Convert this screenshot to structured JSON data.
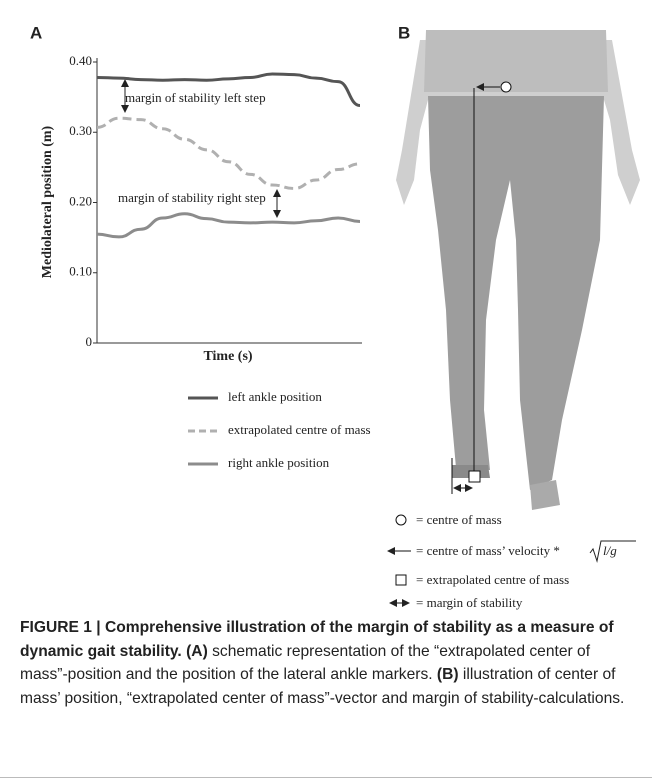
{
  "chart_data": {
    "type": "line",
    "panel_label": "A",
    "ylabel": "Mediolateral position (m)",
    "xlabel": "Time (s)",
    "categories": [
      null,
      null,
      null,
      null,
      null,
      null,
      null,
      null,
      null,
      null,
      null,
      null,
      null
    ],
    "ylim": [
      0,
      0.4
    ],
    "yticks": [
      0,
      {
        "value": 0.1,
        "label": "0.10"
      },
      {
        "value": 0.2,
        "label": "0.20"
      },
      {
        "value": 0.3,
        "label": "0.30"
      },
      {
        "value": 0.4,
        "label": "0.40"
      }
    ],
    "series": [
      {
        "name": "left ankle position",
        "color": "#555555",
        "dashed": false,
        "values": [
          0.378,
          0.377,
          0.375,
          0.374,
          0.375,
          0.374,
          0.376,
          0.378,
          0.383,
          0.382,
          0.377,
          0.372,
          0.338
        ]
      },
      {
        "name": "extrapolated centre of mass",
        "color": "#b0b0b0",
        "dashed": true,
        "values": [
          0.307,
          0.32,
          0.318,
          0.305,
          0.29,
          0.275,
          0.258,
          0.24,
          0.225,
          0.22,
          0.232,
          0.247,
          0.255
        ]
      },
      {
        "name": "right ankle position",
        "color": "#8c8c8c",
        "dashed": false,
        "values": [
          0.155,
          0.151,
          0.162,
          0.178,
          0.184,
          0.177,
          0.172,
          0.171,
          0.172,
          0.171,
          0.174,
          0.178,
          0.173
        ]
      }
    ],
    "annotations": [
      "margin of stability left step",
      "margin of stability right step"
    ]
  },
  "panel_b": {
    "label": "B",
    "legend": [
      "= centre of mass",
      "= centre of mass’ velocity *",
      "= extrapolated centre of mass",
      "= margin of stability"
    ],
    "formula": "l/g"
  },
  "caption": {
    "title": "FIGURE 1 | Comprehensive illustration of the margin of stability as a measure of dynamic gait stability.",
    "a_label": "(A)",
    "a_text": "schematic representation of the “extrapolated center of mass”-position and the position of the lateral ankle markers.",
    "b_label": "(B)",
    "b_text": "illustration of center of mass’ position, “extrapolated center of mass”-vector and margin of stability-calculations."
  }
}
